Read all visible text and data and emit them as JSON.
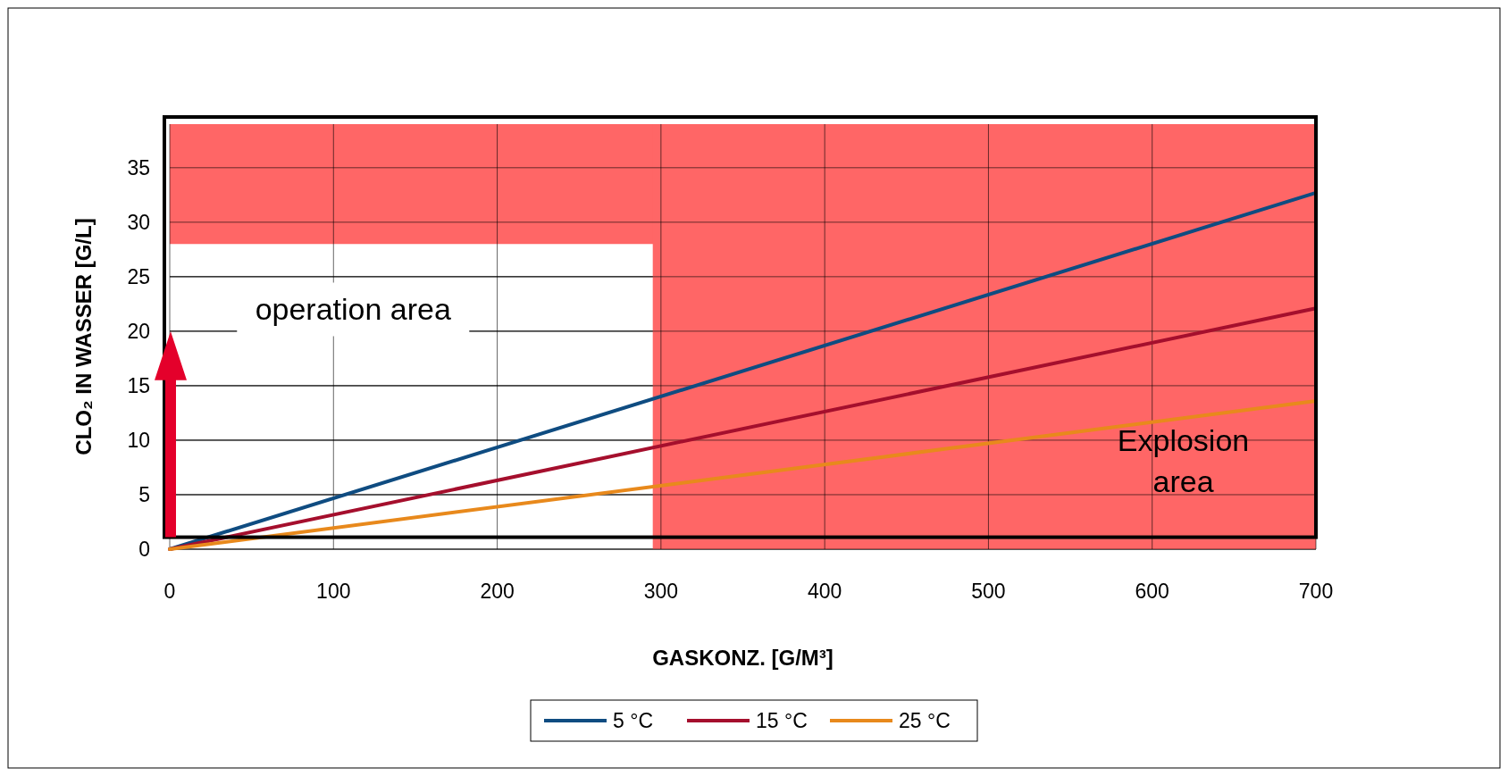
{
  "chart_data": {
    "type": "line",
    "xlabel": "GASKONZ. [G/M³]",
    "ylabel": "CLO₂ IN WASSER [G/L]",
    "x": [
      0,
      700
    ],
    "series": [
      {
        "name": "5 °C",
        "color": "#0f4c81",
        "values": [
          0,
          32.7
        ]
      },
      {
        "name": "15 °C",
        "color": "#a50f2d",
        "values": [
          0,
          22.1
        ]
      },
      {
        "name": "25 °C",
        "color": "#e8891c",
        "values": [
          0,
          13.6
        ]
      }
    ],
    "xlim": [
      0,
      700
    ],
    "xticks": [
      0,
      100,
      200,
      300,
      400,
      500,
      600,
      700
    ],
    "ylim": [
      0,
      39
    ],
    "yticks": [
      0,
      5,
      10,
      15,
      20,
      25,
      30,
      35
    ],
    "bands": [
      {
        "axis": "y",
        "from": 28,
        "to": 39,
        "color": "#ff6666"
      },
      {
        "axis": "x",
        "from": 295,
        "to": 700,
        "color": "#ff6666",
        "label": "Explosion area"
      }
    ],
    "annotations": [
      "operation area"
    ],
    "grid": true,
    "legend": "bottom",
    "marker": "none",
    "line_style": "solid"
  }
}
